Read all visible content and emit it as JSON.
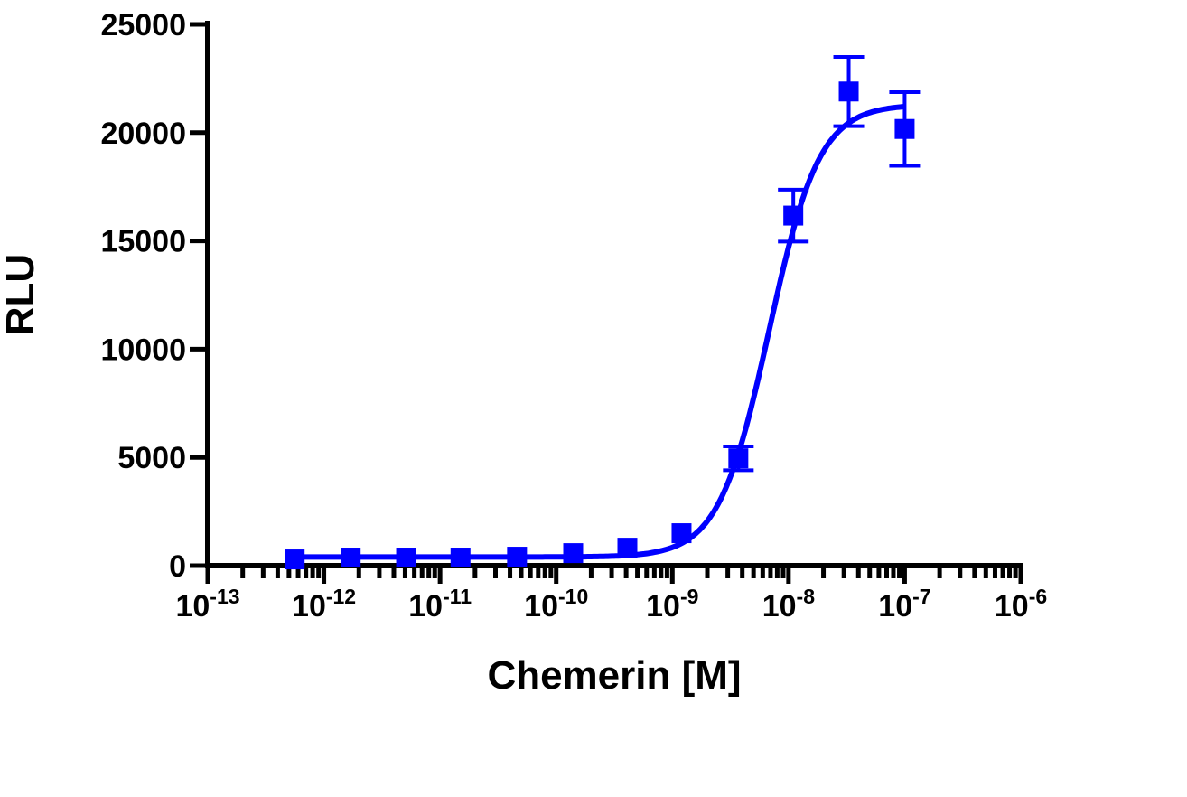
{
  "chart_data": {
    "type": "scatter",
    "title": "",
    "xlabel": "Chemerin [M]",
    "ylabel": "RLU",
    "x_scale": "log",
    "xlim": [
      1e-13,
      1e-06
    ],
    "ylim": [
      0,
      25000
    ],
    "x_ticks": [
      {
        "base": "10",
        "exp": "-13"
      },
      {
        "base": "10",
        "exp": "-12"
      },
      {
        "base": "10",
        "exp": "-11"
      },
      {
        "base": "10",
        "exp": "-10"
      },
      {
        "base": "10",
        "exp": "-9"
      },
      {
        "base": "10",
        "exp": "-8"
      },
      {
        "base": "10",
        "exp": "-7"
      },
      {
        "base": "10",
        "exp": "-6"
      }
    ],
    "y_ticks": [
      "0",
      "5000",
      "10000",
      "15000",
      "20000",
      "25000"
    ],
    "grid": false,
    "color": "#0000ff",
    "points": [
      {
        "x": 5.6e-13,
        "y": 290,
        "err": 0
      },
      {
        "x": 1.7e-12,
        "y": 375,
        "err": 0
      },
      {
        "x": 5.1e-12,
        "y": 375,
        "err": 0
      },
      {
        "x": 1.5e-11,
        "y": 375,
        "err": 0
      },
      {
        "x": 4.6e-11,
        "y": 415,
        "err": 0
      },
      {
        "x": 1.4e-10,
        "y": 580,
        "err": 0
      },
      {
        "x": 4.1e-10,
        "y": 830,
        "err": 0
      },
      {
        "x": 1.2e-09,
        "y": 1500,
        "err": 0
      },
      {
        "x": 3.7e-09,
        "y": 4960,
        "err": 550
      },
      {
        "x": 1.1e-08,
        "y": 16170,
        "err": 1200
      },
      {
        "x": 3.3e-08,
        "y": 21900,
        "err": 1600
      },
      {
        "x": 1e-07,
        "y": 20170,
        "err": 1700
      }
    ],
    "fit": {
      "model": "4PL",
      "bottom": 400,
      "top": 21300,
      "ec50": 6.8e-09,
      "hill": 2.0
    }
  }
}
